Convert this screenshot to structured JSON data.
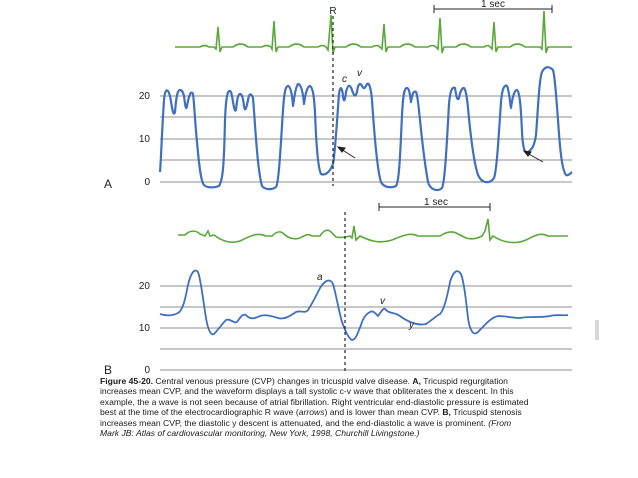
{
  "panel_a": {
    "label": "A",
    "r_label": "R",
    "scale_label": "1 sec",
    "ticks": [
      "20",
      "10",
      "0"
    ],
    "wave_labels": {
      "c": "c",
      "v": "v"
    }
  },
  "panel_b": {
    "label": "B",
    "scale_label": "1 sec",
    "ticks": [
      "20",
      "10",
      "0"
    ],
    "wave_labels": {
      "a": "a",
      "v": "v",
      "y": "y"
    }
  },
  "caption": {
    "figure_number": "Figure 45-20.",
    "intro": " Central venous pressure (CVP) changes in tricuspid valve disease. ",
    "a_label": "A,",
    "a_text_1": " Tricuspid regurgitation increases mean CVP, and the waveform displays a tall systolic c-v wave that obliterates the x descent. In this example, the a wave is not seen because of atrial fibrillation. Right ventricular end-diastolic pressure is estimated best at the time of the electrocardiographic R wave (",
    "arrows": "arrows",
    "a_text_2": ") and is lower than mean CVP. ",
    "b_label": "B,",
    "b_text": " Tricuspid stenosis increases mean CVP, the diastolic y descent is attenuated, and the end-diastolic a wave is prominent.",
    "source": "(From Mark JB: Atlas of cardiovascular monitoring, New York, 1998, Churchill Livingstone.)"
  },
  "colors": {
    "ecg": "#5aa83a",
    "cvp": "#3f6fc0",
    "grid": "#6a6a6a",
    "marker": "#222222"
  }
}
